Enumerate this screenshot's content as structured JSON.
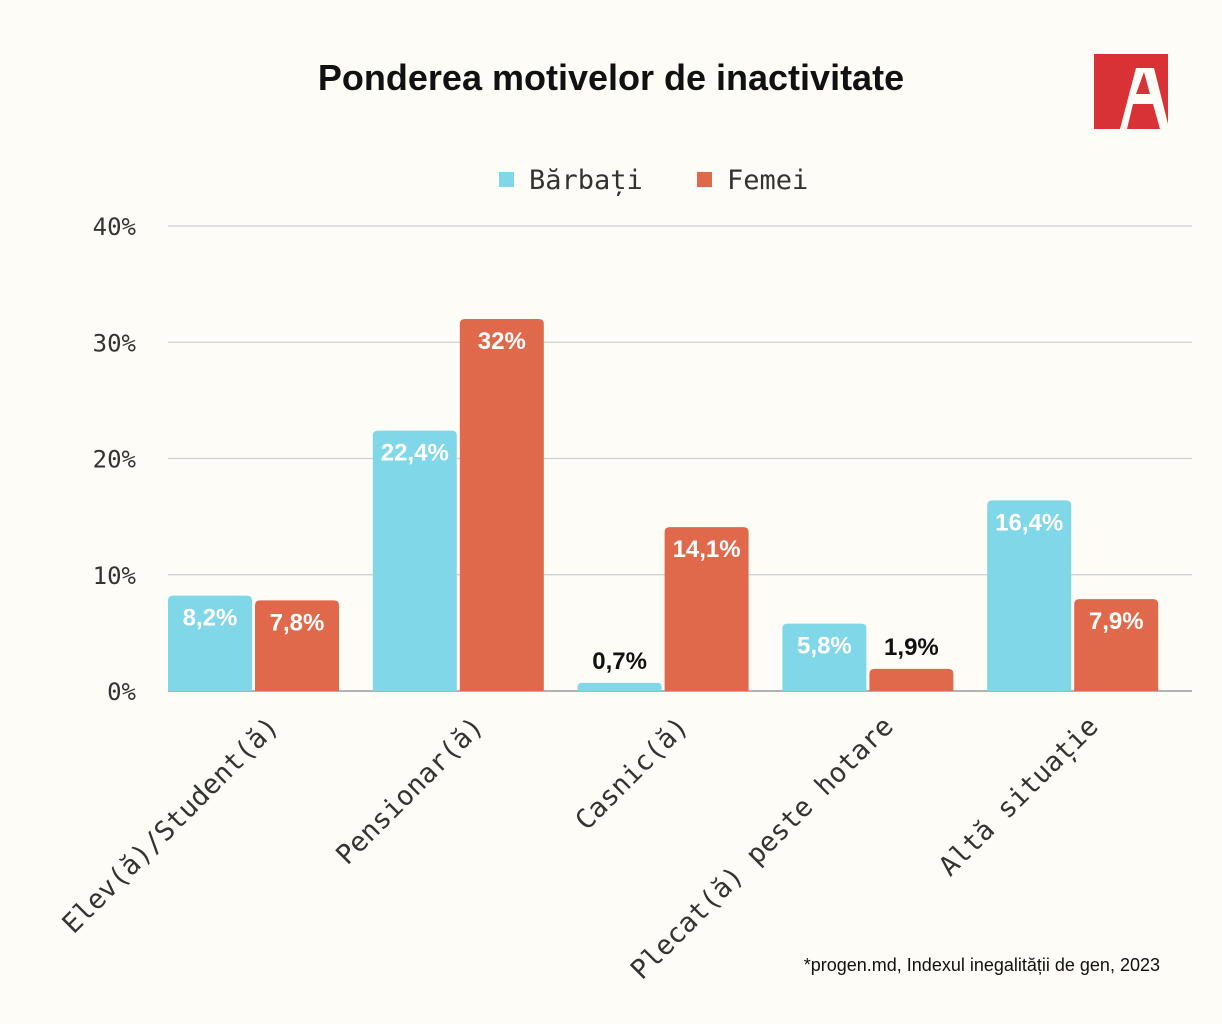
{
  "chart_data": {
    "type": "bar",
    "title": "Ponderea motivelor de inactivitate",
    "categories": [
      "Elev(ă)/Student(ă)",
      "Pensionar(ă)",
      "Casnic(ă)",
      "Plecat(ă) peste hotare",
      "Altă situație"
    ],
    "series": [
      {
        "name": "Bărbați",
        "color": "#80d7e7",
        "values": [
          8.2,
          22.4,
          0.7,
          5.8,
          16.4
        ],
        "labels": [
          "8,2%",
          "22,4%",
          "0,7%",
          "5,8%",
          "16,4%"
        ]
      },
      {
        "name": "Femei",
        "color": "#e1694b",
        "values": [
          7.8,
          32,
          14.1,
          1.9,
          7.9
        ],
        "labels": [
          "7,8%",
          "32%",
          "14,1%",
          "1,9%",
          "7,9%"
        ]
      }
    ],
    "ylim": [
      0,
      40
    ],
    "yticks": [
      0,
      10,
      20,
      30,
      40
    ],
    "ytick_labels": [
      "0%",
      "10%",
      "20%",
      "30%",
      "40%"
    ],
    "xlabel": "",
    "ylabel": "",
    "grid": true,
    "legend_position": "top-center"
  },
  "source_note": "*progen.md, Indexul inegalității de gen, 2023",
  "logo": {
    "letter": "A",
    "color": "#d93236"
  }
}
